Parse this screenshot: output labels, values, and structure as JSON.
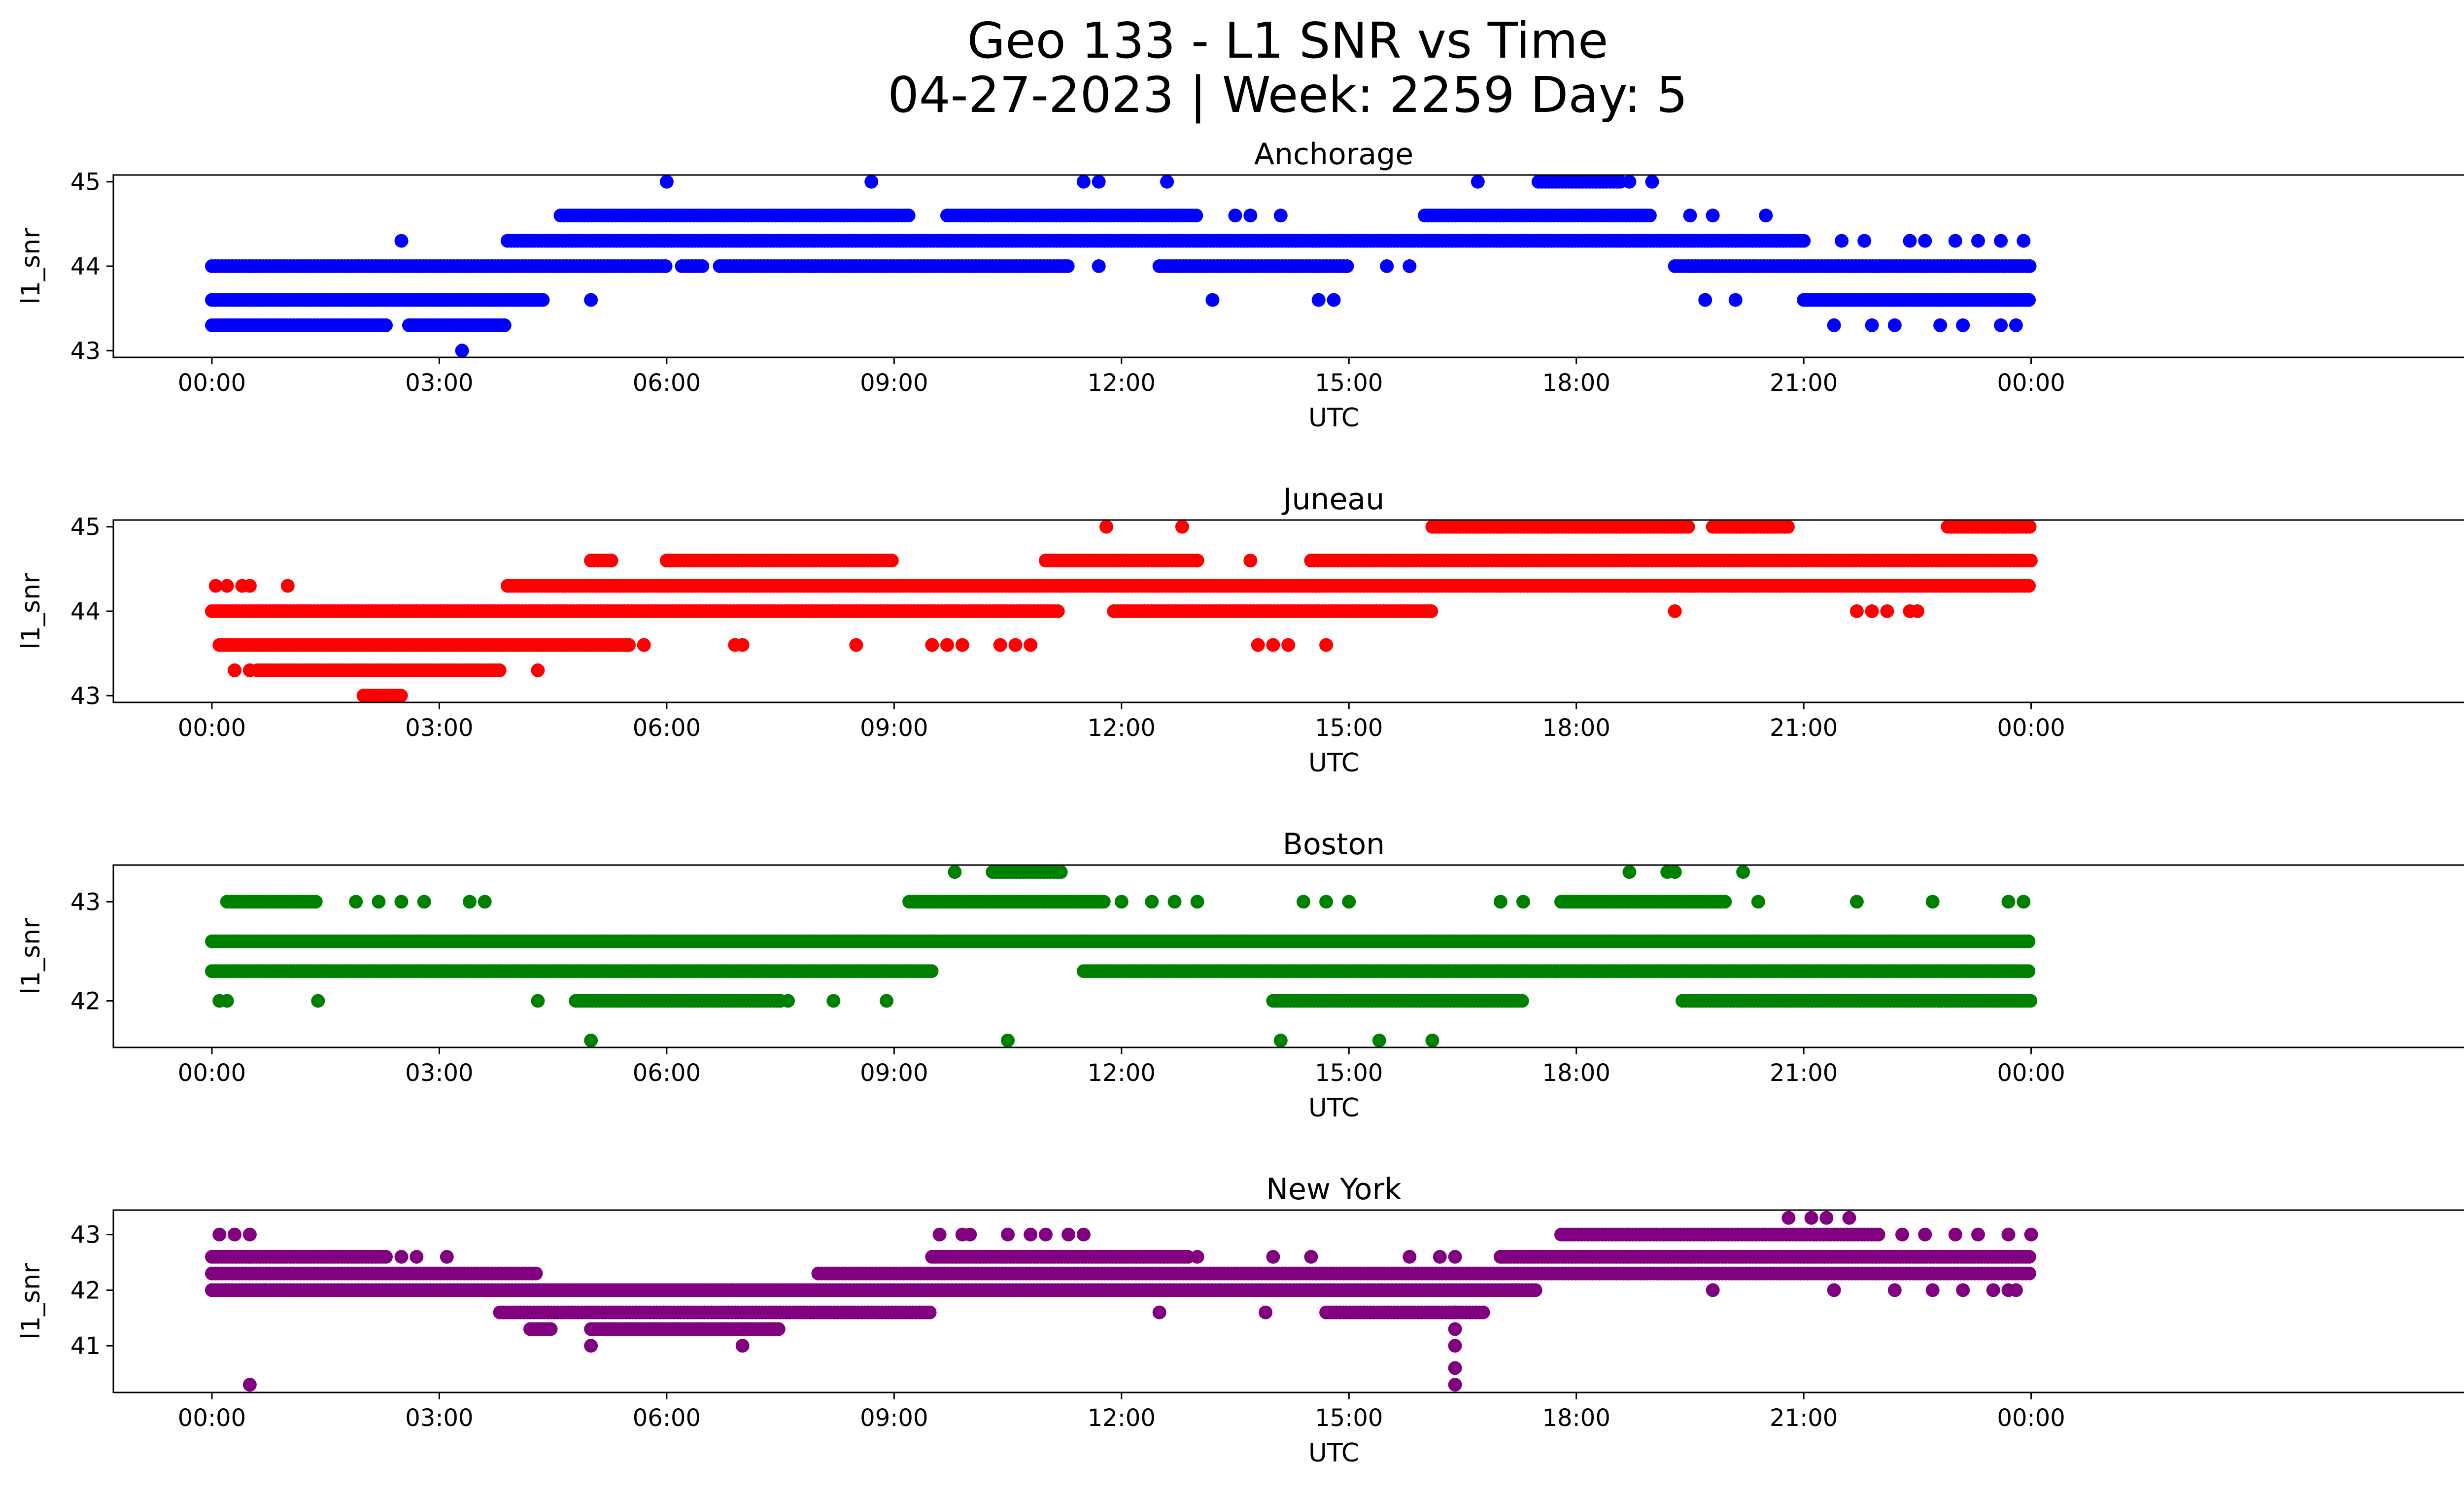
{
  "figure": {
    "title_line1": "Geo 133 - L1 SNR vs Time",
    "title_line2": "04-27-2023 | Week: 2259 Day: 5"
  },
  "chart_data": [
    {
      "type": "scatter",
      "title": "Anchorage",
      "xlabel": "UTC",
      "ylabel": "l1_snr",
      "color": "#0000ff",
      "xlim": [
        -1.3,
        30.9
      ],
      "ylim": [
        42.92,
        45.08
      ],
      "xticks": [
        0,
        3,
        6,
        9,
        12,
        15,
        18,
        21,
        24
      ],
      "xtick_labels": [
        "00:00",
        "03:00",
        "06:00",
        "09:00",
        "12:00",
        "15:00",
        "18:00",
        "21:00",
        "00:00"
      ],
      "yticks": [
        43,
        44,
        45
      ],
      "bands": [
        {
          "y": 43.3,
          "ranges": [
            [
              0,
              2.3
            ],
            [
              2.6,
              3.9
            ]
          ]
        },
        {
          "y": 43.6,
          "ranges": [
            [
              0,
              4.4
            ],
            [
              21.0,
              24.0
            ]
          ]
        },
        {
          "y": 44.0,
          "ranges": [
            [
              0,
              6.0
            ],
            [
              6.2,
              6.5
            ],
            [
              6.7,
              11.3
            ],
            [
              12.5,
              15.0
            ],
            [
              19.3,
              24.0
            ]
          ]
        },
        {
          "y": 44.3,
          "ranges": [
            [
              3.9,
              21.0
            ]
          ]
        },
        {
          "y": 44.6,
          "ranges": [
            [
              4.6,
              9.2
            ],
            [
              9.7,
              13.0
            ],
            [
              16.0,
              19.0
            ]
          ]
        },
        {
          "y": 45.0,
          "ranges": [
            [
              17.5,
              18.6
            ]
          ]
        }
      ],
      "points": [
        [
          3.3,
          43.0
        ],
        [
          2.5,
          44.3
        ],
        [
          5.0,
          43.6
        ],
        [
          6.0,
          45.0
        ],
        [
          8.7,
          45.0
        ],
        [
          11.5,
          45.0
        ],
        [
          11.7,
          45.0
        ],
        [
          12.6,
          45.0
        ],
        [
          16.7,
          45.0
        ],
        [
          18.7,
          45.0
        ],
        [
          19.0,
          45.0
        ],
        [
          13.2,
          43.6
        ],
        [
          14.6,
          43.6
        ],
        [
          14.8,
          43.6
        ],
        [
          11.7,
          44.0
        ],
        [
          15.5,
          44.0
        ],
        [
          15.8,
          44.0
        ],
        [
          13.5,
          44.6
        ],
        [
          13.7,
          44.6
        ],
        [
          14.1,
          44.6
        ],
        [
          19.5,
          44.6
        ],
        [
          19.8,
          44.6
        ],
        [
          20.5,
          44.6
        ],
        [
          19.7,
          43.6
        ],
        [
          20.1,
          43.6
        ],
        [
          21.4,
          43.3
        ],
        [
          21.9,
          43.3
        ],
        [
          22.2,
          43.3
        ],
        [
          22.8,
          43.3
        ],
        [
          23.1,
          43.3
        ],
        [
          23.6,
          43.3
        ],
        [
          23.8,
          43.3
        ],
        [
          21.5,
          44.3
        ],
        [
          21.8,
          44.3
        ],
        [
          22.4,
          44.3
        ],
        [
          22.6,
          44.3
        ],
        [
          23.0,
          44.3
        ],
        [
          23.3,
          44.3
        ],
        [
          23.6,
          44.3
        ],
        [
          23.9,
          44.3
        ]
      ]
    },
    {
      "type": "scatter",
      "title": "Juneau",
      "xlabel": "UTC",
      "ylabel": "l1_snr",
      "color": "#ff0000",
      "xlim": [
        -1.3,
        30.9
      ],
      "ylim": [
        42.92,
        45.08
      ],
      "xticks": [
        0,
        3,
        6,
        9,
        12,
        15,
        18,
        21,
        24
      ],
      "xtick_labels": [
        "00:00",
        "03:00",
        "06:00",
        "09:00",
        "12:00",
        "15:00",
        "18:00",
        "21:00",
        "00:00"
      ],
      "yticks": [
        43,
        44,
        45
      ],
      "bands": [
        {
          "y": 43.0,
          "ranges": [
            [
              2.0,
              2.5
            ]
          ]
        },
        {
          "y": 43.3,
          "ranges": [
            [
              0.6,
              3.8
            ]
          ]
        },
        {
          "y": 43.6,
          "ranges": [
            [
              0.1,
              5.5
            ]
          ]
        },
        {
          "y": 44.0,
          "ranges": [
            [
              0,
              11.2
            ],
            [
              11.9,
              16.1
            ]
          ]
        },
        {
          "y": 44.3,
          "ranges": [
            [
              3.9,
              24.0
            ]
          ]
        },
        {
          "y": 44.6,
          "ranges": [
            [
              5.0,
              5.3
            ],
            [
              6.0,
              9.0
            ],
            [
              11.0,
              13.0
            ],
            [
              14.5,
              24.0
            ]
          ]
        },
        {
          "y": 45.0,
          "ranges": [
            [
              16.1,
              19.5
            ],
            [
              19.8,
              20.8
            ],
            [
              22.9,
              24.0
            ]
          ]
        }
      ],
      "points": [
        [
          0.05,
          44.3
        ],
        [
          0.2,
          44.3
        ],
        [
          0.4,
          44.3
        ],
        [
          0.5,
          44.3
        ],
        [
          1.0,
          44.3
        ],
        [
          0.3,
          43.3
        ],
        [
          0.5,
          43.3
        ],
        [
          4.3,
          43.3
        ],
        [
          5.7,
          43.6
        ],
        [
          6.9,
          43.6
        ],
        [
          7.0,
          43.6
        ],
        [
          8.5,
          43.6
        ],
        [
          9.5,
          43.6
        ],
        [
          9.7,
          43.6
        ],
        [
          9.9,
          43.6
        ],
        [
          10.4,
          43.6
        ],
        [
          10.6,
          43.6
        ],
        [
          10.8,
          43.6
        ],
        [
          11.8,
          45.0
        ],
        [
          12.8,
          45.0
        ],
        [
          13.0,
          44.6
        ],
        [
          13.7,
          44.6
        ],
        [
          13.8,
          43.6
        ],
        [
          14.0,
          43.6
        ],
        [
          14.2,
          43.6
        ],
        [
          14.7,
          43.6
        ],
        [
          19.3,
          44.0
        ],
        [
          21.7,
          44.0
        ],
        [
          21.9,
          44.0
        ],
        [
          22.1,
          44.0
        ],
        [
          22.4,
          44.0
        ],
        [
          22.5,
          44.0
        ]
      ]
    },
    {
      "type": "scatter",
      "title": "Boston",
      "xlabel": "UTC",
      "ylabel": "l1_snr",
      "color": "#008000",
      "xlim": [
        -1.3,
        30.9
      ],
      "ylim": [
        41.53,
        43.37
      ],
      "xticks": [
        0,
        3,
        6,
        9,
        12,
        15,
        18,
        21,
        24
      ],
      "xtick_labels": [
        "00:00",
        "03:00",
        "06:00",
        "09:00",
        "12:00",
        "15:00",
        "18:00",
        "21:00",
        "00:00"
      ],
      "yticks": [
        42,
        43
      ],
      "bands": [
        {
          "y": 42.0,
          "ranges": [
            [
              4.8,
              7.5
            ],
            [
              14.0,
              17.3
            ],
            [
              19.4,
              24.0
            ]
          ]
        },
        {
          "y": 42.3,
          "ranges": [
            [
              0,
              9.5
            ],
            [
              11.5,
              24.0
            ]
          ]
        },
        {
          "y": 42.6,
          "ranges": [
            [
              0,
              11.5
            ],
            [
              11.5,
              24.0
            ]
          ]
        },
        {
          "y": 43.0,
          "ranges": [
            [
              0.2,
              1.4
            ],
            [
              9.2,
              11.8
            ],
            [
              17.8,
              20.0
            ]
          ]
        },
        {
          "y": 43.3,
          "ranges": [
            [
              10.3,
              11.2
            ]
          ]
        }
      ],
      "points": [
        [
          0.1,
          42.0
        ],
        [
          0.2,
          42.0
        ],
        [
          1.4,
          42.0
        ],
        [
          4.3,
          42.0
        ],
        [
          7.6,
          42.0
        ],
        [
          8.2,
          42.0
        ],
        [
          8.9,
          42.0
        ],
        [
          5.0,
          41.6
        ],
        [
          10.5,
          41.6
        ],
        [
          14.1,
          41.6
        ],
        [
          15.4,
          41.6
        ],
        [
          16.1,
          41.6
        ],
        [
          1.9,
          43.0
        ],
        [
          2.2,
          43.0
        ],
        [
          2.5,
          43.0
        ],
        [
          2.8,
          43.0
        ],
        [
          3.4,
          43.0
        ],
        [
          3.6,
          43.0
        ],
        [
          9.8,
          43.3
        ],
        [
          18.7,
          43.3
        ],
        [
          19.2,
          43.3
        ],
        [
          19.3,
          43.3
        ],
        [
          20.2,
          43.3
        ],
        [
          12.0,
          43.0
        ],
        [
          12.4,
          43.0
        ],
        [
          12.7,
          43.0
        ],
        [
          13.0,
          43.0
        ],
        [
          14.4,
          43.0
        ],
        [
          14.7,
          43.0
        ],
        [
          15.0,
          43.0
        ],
        [
          17.0,
          43.0
        ],
        [
          17.3,
          43.0
        ],
        [
          20.4,
          43.0
        ],
        [
          21.7,
          43.0
        ],
        [
          22.7,
          43.0
        ],
        [
          23.7,
          43.0
        ],
        [
          23.9,
          43.0
        ]
      ]
    },
    {
      "type": "scatter",
      "title": "New York",
      "xlabel": "UTC",
      "ylabel": "l1_snr",
      "color": "#800080",
      "xlim": [
        -1.3,
        30.9
      ],
      "ylim": [
        40.16,
        43.44
      ],
      "xticks": [
        0,
        3,
        6,
        9,
        12,
        15,
        18,
        21,
        24
      ],
      "xtick_labels": [
        "00:00",
        "03:00",
        "06:00",
        "09:00",
        "12:00",
        "15:00",
        "18:00",
        "21:00",
        "00:00"
      ],
      "yticks": [
        41,
        42,
        43
      ],
      "bands": [
        {
          "y": 41.3,
          "ranges": [
            [
              4.2,
              4.5
            ],
            [
              5.0,
              7.5
            ]
          ]
        },
        {
          "y": 41.6,
          "ranges": [
            [
              3.8,
              9.5
            ],
            [
              14.7,
              16.8
            ]
          ]
        },
        {
          "y": 42.0,
          "ranges": [
            [
              0,
              17.5
            ]
          ]
        },
        {
          "y": 42.3,
          "ranges": [
            [
              0,
              4.3
            ],
            [
              8.0,
              24.0
            ]
          ]
        },
        {
          "y": 42.6,
          "ranges": [
            [
              0,
              2.3
            ],
            [
              9.5,
              12.9
            ],
            [
              17.0,
              24.0
            ]
          ]
        },
        {
          "y": 43.0,
          "ranges": [
            [
              17.8,
              22.0
            ]
          ]
        }
      ],
      "points": [
        [
          0.1,
          43.0
        ],
        [
          0.3,
          43.0
        ],
        [
          0.5,
          43.0
        ],
        [
          0.5,
          40.3
        ],
        [
          0.0,
          42.0
        ],
        [
          0.2,
          42.0
        ],
        [
          0.7,
          42.0
        ],
        [
          0.9,
          42.0
        ],
        [
          5.0,
          41.0
        ],
        [
          7.0,
          41.0
        ],
        [
          9.6,
          43.0
        ],
        [
          9.9,
          43.0
        ],
        [
          10.0,
          43.0
        ],
        [
          10.5,
          43.0
        ],
        [
          10.8,
          43.0
        ],
        [
          11.0,
          43.0
        ],
        [
          11.3,
          43.0
        ],
        [
          11.5,
          43.0
        ],
        [
          12.5,
          41.6
        ],
        [
          13.9,
          41.6
        ],
        [
          16.4,
          41.3
        ],
        [
          16.4,
          41.0
        ],
        [
          16.4,
          40.6
        ],
        [
          16.4,
          40.3
        ],
        [
          16.4,
          41.6
        ],
        [
          20.8,
          43.3
        ],
        [
          21.1,
          43.3
        ],
        [
          21.3,
          43.3
        ],
        [
          21.6,
          43.3
        ],
        [
          21.4,
          42.0
        ],
        [
          22.2,
          42.0
        ],
        [
          22.7,
          42.0
        ],
        [
          23.1,
          42.0
        ],
        [
          23.5,
          42.0
        ],
        [
          23.7,
          42.0
        ],
        [
          23.8,
          42.0
        ],
        [
          19.8,
          42.0
        ],
        [
          17.2,
          42.0
        ],
        [
          22.3,
          43.0
        ],
        [
          22.6,
          43.0
        ],
        [
          23.0,
          43.0
        ],
        [
          23.3,
          43.0
        ],
        [
          23.7,
          43.0
        ],
        [
          24.0,
          43.0
        ],
        [
          2.5,
          42.6
        ],
        [
          2.7,
          42.6
        ],
        [
          3.1,
          42.6
        ],
        [
          13.0,
          42.6
        ],
        [
          14.0,
          42.6
        ],
        [
          14.5,
          42.6
        ],
        [
          15.8,
          42.6
        ],
        [
          16.2,
          42.6
        ],
        [
          16.4,
          42.6
        ]
      ]
    }
  ]
}
